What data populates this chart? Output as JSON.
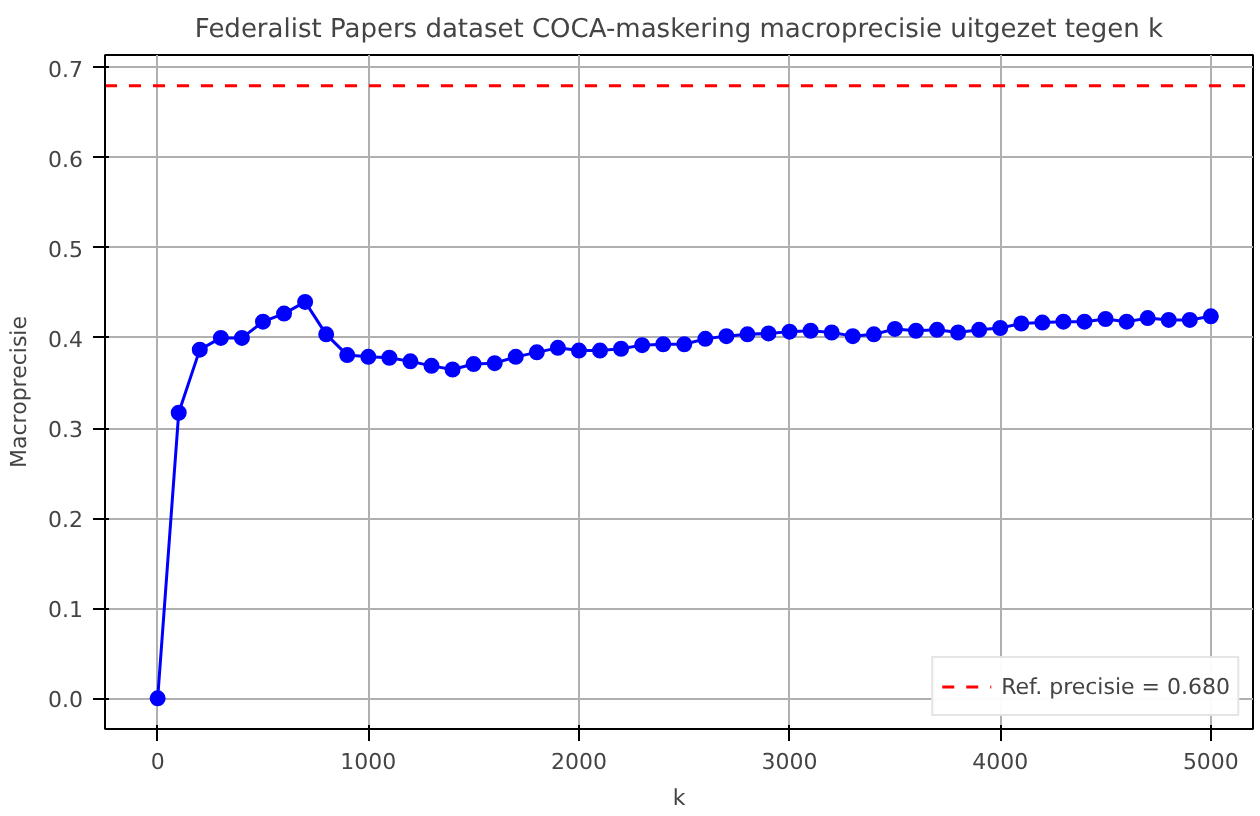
{
  "chart_data": {
    "type": "line",
    "title": "Federalist Papers dataset COCA-maskering macroprecisie uitgezet tegen k",
    "xlabel": "k",
    "ylabel": "Macroprecisie",
    "x": [
      0,
      100,
      200,
      300,
      400,
      500,
      600,
      700,
      800,
      900,
      1000,
      1100,
      1200,
      1300,
      1400,
      1500,
      1600,
      1700,
      1800,
      1900,
      2000,
      2100,
      2200,
      2300,
      2400,
      2500,
      2600,
      2700,
      2800,
      2900,
      3000,
      3100,
      3200,
      3300,
      3400,
      3500,
      3600,
      3700,
      3800,
      3900,
      4000,
      4100,
      4200,
      4300,
      4400,
      4500,
      4600,
      4700,
      4800,
      4900,
      5000
    ],
    "series": [
      {
        "color": "#0000ff",
        "values": [
          0,
          0.317,
          0.387,
          0.4,
          0.4,
          0.418,
          0.427,
          0.44,
          0.404,
          0.381,
          0.379,
          0.378,
          0.374,
          0.369,
          0.365,
          0.371,
          0.372,
          0.379,
          0.384,
          0.389,
          0.386,
          0.386,
          0.388,
          0.392,
          0.393,
          0.393,
          0.399,
          0.402,
          0.404,
          0.405,
          0.407,
          0.408,
          0.406,
          0.402,
          0.404,
          0.41,
          0.408,
          0.409,
          0.406,
          0.409,
          0.411,
          0.416,
          0.417,
          0.418,
          0.418,
          0.421,
          0.418,
          0.422,
          0.42,
          0.42,
          0.424
        ]
      }
    ],
    "ref_lines": [
      {
        "axis": "y",
        "value": 0.68,
        "label": "Ref. precisie = 0.680",
        "color": "#ff0000",
        "line_style": "dashed"
      }
    ],
    "xlim": [
      -250,
      5200
    ],
    "ylim": [
      -0.034,
      0.714
    ],
    "xticks": [
      0,
      1000,
      2000,
      3000,
      4000,
      5000
    ],
    "yticks": [
      {
        "value": 0,
        "label": "0.0"
      },
      0.1,
      0.2,
      0.3,
      0.4,
      0.5,
      0.6,
      0.7
    ],
    "grid": true,
    "legend": "bottom right",
    "marker": "circle",
    "line_style": "solid"
  }
}
